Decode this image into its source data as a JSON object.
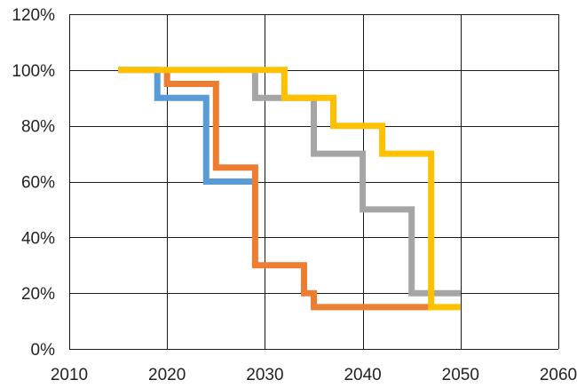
{
  "chart_data": {
    "type": "line",
    "step": true,
    "title": "",
    "xlabel": "",
    "ylabel": "",
    "xlim": [
      2010,
      2060
    ],
    "ylim": [
      0,
      120
    ],
    "grid": true,
    "legend": "none",
    "x_ticks": [
      2010,
      2020,
      2030,
      2040,
      2050,
      2060
    ],
    "y_ticks": [
      0,
      20,
      40,
      60,
      80,
      100,
      120
    ],
    "x_tick_labels": [
      "2010",
      "2020",
      "2030",
      "2040",
      "2050",
      "2060"
    ],
    "y_tick_labels": [
      "0%",
      "20%",
      "40%",
      "60%",
      "80%",
      "100%",
      "120%"
    ],
    "series": [
      {
        "color": "#5b9bd5",
        "points": [
          [
            2015,
            100
          ],
          [
            2019,
            100
          ],
          [
            2019,
            90
          ],
          [
            2024,
            90
          ],
          [
            2024,
            60
          ],
          [
            2029,
            60
          ]
        ]
      },
      {
        "color": "#ed7d31",
        "points": [
          [
            2020,
            100
          ],
          [
            2020,
            95
          ],
          [
            2025,
            95
          ],
          [
            2025,
            65
          ],
          [
            2029,
            65
          ],
          [
            2029,
            30
          ],
          [
            2034,
            30
          ],
          [
            2034,
            20
          ],
          [
            2035,
            20
          ],
          [
            2035,
            15
          ],
          [
            2047,
            15
          ]
        ]
      },
      {
        "color": "#a5a5a5",
        "points": [
          [
            2029,
            100
          ],
          [
            2029,
            90
          ],
          [
            2035,
            90
          ],
          [
            2035,
            70
          ],
          [
            2040,
            70
          ],
          [
            2040,
            50
          ],
          [
            2045,
            50
          ],
          [
            2045,
            20
          ],
          [
            2050,
            20
          ]
        ]
      },
      {
        "color": "#ffc000",
        "points": [
          [
            2015,
            100
          ],
          [
            2032,
            100
          ],
          [
            2032,
            90
          ],
          [
            2037,
            90
          ],
          [
            2037,
            80
          ],
          [
            2042,
            80
          ],
          [
            2042,
            70
          ],
          [
            2047,
            70
          ],
          [
            2047,
            15
          ],
          [
            2050,
            15
          ]
        ]
      }
    ]
  }
}
